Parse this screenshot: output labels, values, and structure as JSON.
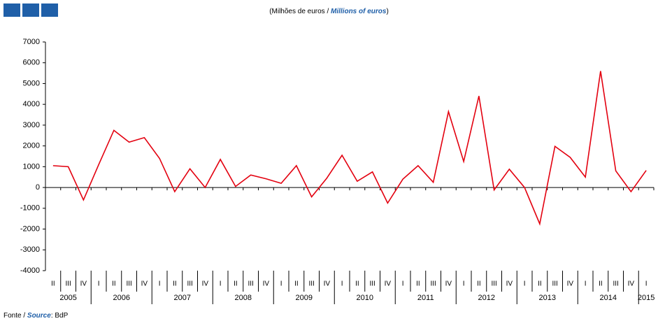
{
  "chart_data": {
    "type": "line",
    "subtitle": [
      "(Milhões de euros / ",
      "Millions of euros",
      ")"
    ],
    "source": [
      "Fonte / ",
      "Source",
      ": BdP"
    ],
    "categories": [
      "II",
      "III",
      "IV",
      "I",
      "II",
      "III",
      "IV",
      "I",
      "II",
      "III",
      "IV",
      "I",
      "II",
      "III",
      "IV",
      "I",
      "II",
      "III",
      "IV",
      "I",
      "II",
      "III",
      "IV",
      "I",
      "II",
      "III",
      "IV",
      "I",
      "II",
      "III",
      "IV",
      "I",
      "II",
      "III",
      "IV",
      "I",
      "II",
      "III",
      "IV",
      "I"
    ],
    "years": [
      "2005",
      "2006",
      "2007",
      "2008",
      "2009",
      "2010",
      "2011",
      "2012",
      "2013",
      "2014",
      "2015"
    ],
    "series": [
      {
        "color": "#e3000f",
        "values": [
          1050,
          1000,
          -600,
          1100,
          2750,
          2180,
          2400,
          1400,
          -200,
          900,
          0,
          1350,
          50,
          600,
          420,
          200,
          1050,
          -450,
          450,
          1550,
          300,
          750,
          -750,
          400,
          1050,
          250,
          3650,
          1250,
          4400,
          -120,
          880,
          0,
          -1750,
          1980,
          1450,
          500,
          5600,
          800,
          -200,
          820
        ]
      }
    ],
    "ylim": [
      -4000,
      7000
    ],
    "yticks": [
      -4000,
      -3000,
      -2000,
      -1000,
      0,
      1000,
      2000,
      3000,
      4000,
      5000,
      6000,
      7000
    ]
  }
}
